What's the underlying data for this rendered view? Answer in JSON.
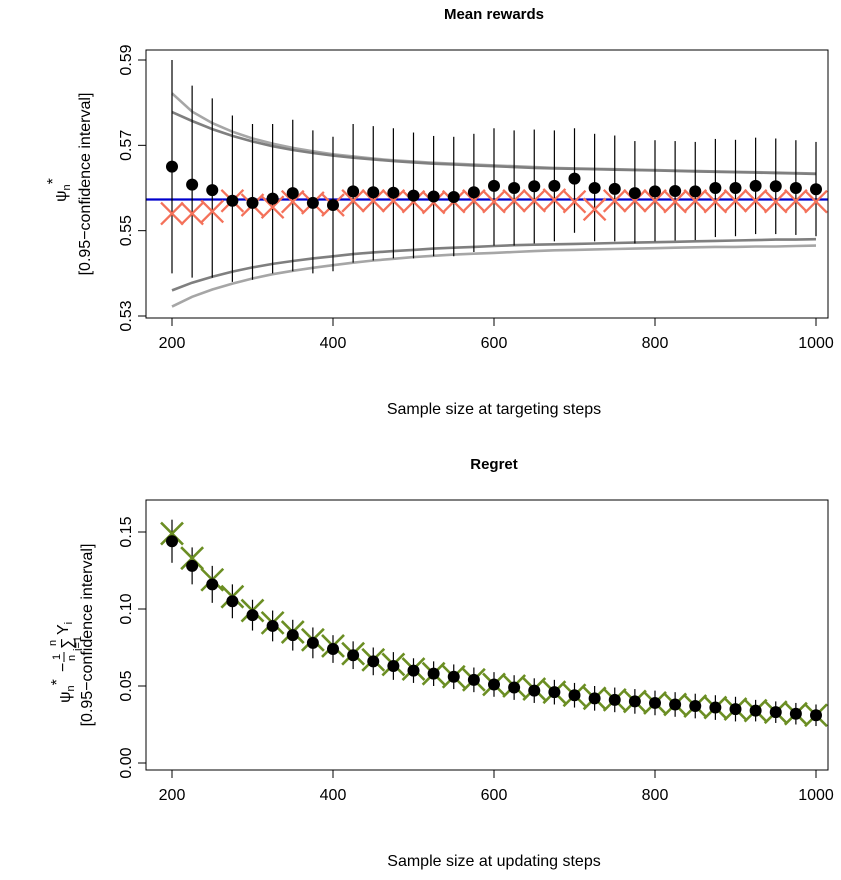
{
  "chart_data": [
    {
      "type": "scatter",
      "title": "Mean rewards",
      "xlabel": "Sample size at targeting steps",
      "ylabel_line1": "ψ",
      "ylabel_sub": "n",
      "ylabel_sup": "*",
      "ylabel_line2": "[0.95−confidence interval]",
      "xlim": [
        200,
        1000
      ],
      "ylim": [
        0.53,
        0.59
      ],
      "xticks": [
        "200",
        "400",
        "600",
        "800",
        "1000"
      ],
      "xtick_values": [
        200,
        400,
        600,
        800,
        1000
      ],
      "yticks": [
        "0.53",
        "0.55",
        "0.57",
        "0.59"
      ],
      "ytick_values": [
        0.53,
        0.55,
        0.57,
        0.59
      ],
      "reference_line": 0.5573,
      "x": [
        200,
        225,
        250,
        275,
        300,
        325,
        350,
        375,
        400,
        425,
        450,
        475,
        500,
        525,
        550,
        575,
        600,
        625,
        650,
        675,
        700,
        725,
        750,
        775,
        800,
        825,
        850,
        875,
        900,
        925,
        950,
        975,
        1000
      ],
      "series": [
        {
          "marker": "point",
          "values": [
            0.565,
            0.5608,
            0.5595,
            0.557,
            0.5565,
            0.5575,
            0.5588,
            0.5565,
            0.556,
            0.5592,
            0.559,
            0.5589,
            0.5582,
            0.558,
            0.5579,
            0.559,
            0.5605,
            0.56,
            0.5604,
            0.5605,
            0.5622,
            0.56,
            0.5598,
            0.5588,
            0.5592,
            0.5593,
            0.5592,
            0.56,
            0.56,
            0.5605,
            0.5604,
            0.56,
            0.5597
          ],
          "lower": [
            0.54,
            0.539,
            0.539,
            0.538,
            0.5385,
            0.54,
            0.5405,
            0.54,
            0.5405,
            0.5425,
            0.543,
            0.5435,
            0.5435,
            0.544,
            0.544,
            0.545,
            0.5465,
            0.5465,
            0.547,
            0.5475,
            0.5495,
            0.5475,
            0.5475,
            0.547,
            0.5475,
            0.5477,
            0.5478,
            0.5485,
            0.5487,
            0.5492,
            0.5492,
            0.549,
            0.5487
          ],
          "upper": [
            0.59,
            0.584,
            0.581,
            0.577,
            0.575,
            0.575,
            0.576,
            0.5735,
            0.572,
            0.575,
            0.5745,
            0.574,
            0.573,
            0.5722,
            0.572,
            0.5727,
            0.574,
            0.5735,
            0.5737,
            0.5735,
            0.574,
            0.5727,
            0.5723,
            0.571,
            0.5712,
            0.571,
            0.5708,
            0.5715,
            0.5713,
            0.5718,
            0.5716,
            0.5712,
            0.5708
          ]
        },
        {
          "marker": "cross",
          "color": "#f4715a",
          "values": [
            0.554,
            0.554,
            0.5545,
            0.557,
            0.556,
            0.5555,
            0.5568,
            0.5565,
            0.556,
            0.557,
            0.557,
            0.557,
            0.5568,
            0.5566,
            0.5568,
            0.557,
            0.5568,
            0.557,
            0.557,
            0.5572,
            0.5568,
            0.555,
            0.557,
            0.557,
            0.557,
            0.5568,
            0.557,
            0.5568,
            0.557,
            0.557,
            0.5568,
            0.557,
            0.5568
          ]
        }
      ],
      "bands": [
        {
          "color": "#a6a6a6",
          "upper": [
            0.5822,
            0.5779,
            0.5752,
            0.5732,
            0.5716,
            0.5704,
            0.5694,
            0.5686,
            0.5679,
            0.5674,
            0.5669,
            0.5665,
            0.5662,
            0.5659,
            0.5657,
            0.5655,
            0.5653,
            0.5651,
            0.5649,
            0.5647,
            0.5646,
            0.5645,
            0.5644,
            0.5643,
            0.5642,
            0.5641,
            0.564,
            0.5639,
            0.5638,
            0.5637,
            0.5636,
            0.5635,
            0.5634
          ]
        },
        {
          "color": "#7f7f7f",
          "upper": [
            0.5778,
            0.5757,
            0.5738,
            0.5722,
            0.5709,
            0.5698,
            0.5689,
            0.5682,
            0.5676,
            0.5671,
            0.5667,
            0.5663,
            0.566,
            0.5657,
            0.5655,
            0.5653,
            0.5651,
            0.5649,
            0.5647,
            0.5646,
            0.5645,
            0.5644,
            0.5643,
            0.5642,
            0.5641,
            0.564,
            0.5639,
            0.5638,
            0.5637,
            0.5636,
            0.5635,
            0.5634,
            0.5633
          ]
        },
        {
          "color": "#7f7f7f",
          "lower": [
            0.536,
            0.5378,
            0.5392,
            0.5404,
            0.5414,
            0.5422,
            0.5429,
            0.5435,
            0.544,
            0.5445,
            0.5449,
            0.5452,
            0.5455,
            0.5458,
            0.546,
            0.5462,
            0.5464,
            0.5466,
            0.5467,
            0.5468,
            0.5469,
            0.547,
            0.5471,
            0.5472,
            0.5473,
            0.5474,
            0.5475,
            0.5476,
            0.5477,
            0.5478,
            0.5479,
            0.5479,
            0.548
          ]
        },
        {
          "color": "#a6a6a6",
          "lower": [
            0.5322,
            0.5345,
            0.5362,
            0.5376,
            0.5388,
            0.5398,
            0.5406,
            0.5413,
            0.5419,
            0.5425,
            0.543,
            0.5434,
            0.5438,
            0.5441,
            0.5444,
            0.5446,
            0.5448,
            0.545,
            0.5452,
            0.5454,
            0.5455,
            0.5456,
            0.5457,
            0.5458,
            0.5459,
            0.546,
            0.5461,
            0.5462,
            0.5462,
            0.5463,
            0.5463,
            0.5464,
            0.5465
          ]
        }
      ],
      "colors": {
        "reference": "#0000cc",
        "points": "#000000",
        "errorbars": "#000000"
      }
    },
    {
      "type": "scatter",
      "title": "Regret",
      "xlabel": "Sample size at updating steps",
      "ylabel_line1": "ψ",
      "ylabel_sub": "n",
      "ylabel_sup": "*",
      "ylabel_frac_num": "1",
      "ylabel_frac_den": "n",
      "ylabel_sum_top": "n",
      "ylabel_sum_bottom": "i=1",
      "ylabel_sum": "∑",
      "ylabel_var": "Y",
      "ylabel_var_sub": "i",
      "ylabel_line2": "[0.95−confidence interval]",
      "xlim": [
        200,
        1000
      ],
      "ylim": [
        0.0,
        0.15
      ],
      "xticks": [
        "200",
        "400",
        "600",
        "800",
        "1000"
      ],
      "xtick_values": [
        200,
        400,
        600,
        800,
        1000
      ],
      "yticks": [
        "0.00",
        "0.05",
        "0.10",
        "0.15"
      ],
      "ytick_values": [
        0.0,
        0.05,
        0.1,
        0.15
      ],
      "x": [
        200,
        225,
        250,
        275,
        300,
        325,
        350,
        375,
        400,
        425,
        450,
        475,
        500,
        525,
        550,
        575,
        600,
        625,
        650,
        675,
        700,
        725,
        750,
        775,
        800,
        825,
        850,
        875,
        900,
        925,
        950,
        975,
        1000
      ],
      "series": [
        {
          "marker": "point",
          "values": [
            0.144,
            0.128,
            0.116,
            0.105,
            0.096,
            0.089,
            0.083,
            0.078,
            0.074,
            0.07,
            0.066,
            0.063,
            0.06,
            0.058,
            0.056,
            0.054,
            0.051,
            0.049,
            0.047,
            0.046,
            0.044,
            0.042,
            0.041,
            0.04,
            0.039,
            0.038,
            0.037,
            0.036,
            0.035,
            0.034,
            0.033,
            0.032,
            0.031
          ],
          "lower": [
            0.13,
            0.116,
            0.104,
            0.094,
            0.086,
            0.079,
            0.073,
            0.068,
            0.065,
            0.061,
            0.057,
            0.054,
            0.052,
            0.05,
            0.048,
            0.046,
            0.043,
            0.041,
            0.039,
            0.038,
            0.036,
            0.034,
            0.033,
            0.032,
            0.031,
            0.03,
            0.029,
            0.028,
            0.027,
            0.027,
            0.026,
            0.025,
            0.024
          ],
          "upper": [
            0.158,
            0.14,
            0.128,
            0.116,
            0.106,
            0.099,
            0.093,
            0.088,
            0.083,
            0.079,
            0.075,
            0.072,
            0.068,
            0.066,
            0.064,
            0.062,
            0.059,
            0.057,
            0.055,
            0.054,
            0.052,
            0.05,
            0.049,
            0.048,
            0.047,
            0.046,
            0.045,
            0.044,
            0.043,
            0.041,
            0.04,
            0.039,
            0.038
          ]
        },
        {
          "marker": "cross",
          "color": "#6b8e23",
          "values": [
            0.149,
            0.133,
            0.119,
            0.108,
            0.099,
            0.091,
            0.085,
            0.08,
            0.076,
            0.071,
            0.067,
            0.064,
            0.061,
            0.058,
            0.056,
            0.054,
            0.051,
            0.05,
            0.048,
            0.046,
            0.044,
            0.042,
            0.041,
            0.04,
            0.039,
            0.038,
            0.037,
            0.036,
            0.035,
            0.034,
            0.033,
            0.032,
            0.031
          ]
        }
      ],
      "colors": {
        "points": "#000000",
        "errorbars": "#000000"
      }
    }
  ]
}
